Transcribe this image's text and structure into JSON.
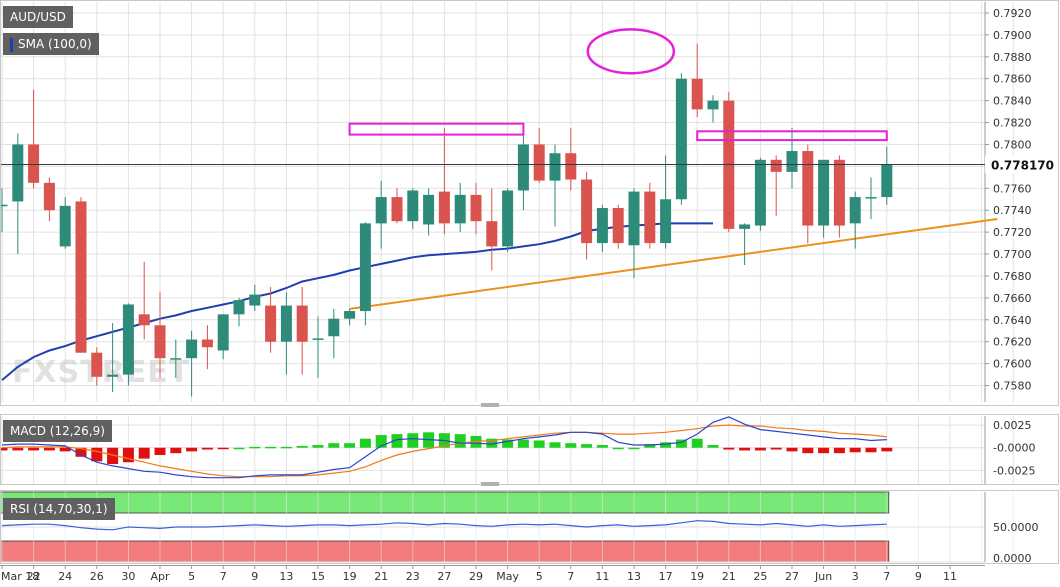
{
  "colors": {
    "up": "#2e8b7a",
    "down": "#d9534f",
    "sma": "#1f3fb0",
    "trendline": "#f0901a",
    "highlight": "#e620d8",
    "macd_line": "#2a44d0",
    "signal_line": "#f07a1a",
    "hist_up": "#20d020",
    "hist_down": "#e01010",
    "rsi_line": "#3a60d8",
    "overbought_zone": "#78e878",
    "oversold_zone": "#f47c7c",
    "grid": "#e2e2e2",
    "label_bg": "#606060"
  },
  "legend": {
    "symbol": "AUD/USD",
    "sma": "SMA (100,0)",
    "macd": "MACD (12,26,9)",
    "rsi": "RSI (14,70,30,1)"
  },
  "watermark": "FXSTREET",
  "price_label": "0.778170",
  "chart_data": [
    {
      "type": "candlestick",
      "title": "AUD/USD",
      "ylim": [
        0.7565,
        0.793
      ],
      "y_ticks": [
        "0.7580",
        "0.7600",
        "0.7620",
        "0.7640",
        "0.7660",
        "0.7680",
        "0.7700",
        "0.7720",
        "0.7740",
        "0.7760",
        "0.7780",
        "0.7800",
        "0.7820",
        "0.7840",
        "0.7860",
        "0.7880",
        "0.7900",
        "0.7920"
      ],
      "x_ticks": [
        "Mar 18",
        "22",
        "24",
        "26",
        "30",
        "Apr",
        "5",
        "7",
        "9",
        "13",
        "15",
        "19",
        "21",
        "23",
        "27",
        "29",
        "May",
        "5",
        "7",
        "11",
        "13",
        "17",
        "19",
        "21",
        "25",
        "27",
        "Jun",
        "3",
        "7",
        "9",
        "11"
      ],
      "current_price": 0.77817,
      "candles": [
        {
          "o": 0.7745,
          "h": 0.776,
          "l": 0.772,
          "c": 0.7745
        },
        {
          "o": 0.7748,
          "h": 0.781,
          "l": 0.77,
          "c": 0.78
        },
        {
          "o": 0.78,
          "h": 0.785,
          "l": 0.776,
          "c": 0.7765
        },
        {
          "o": 0.7765,
          "h": 0.777,
          "l": 0.773,
          "c": 0.774
        },
        {
          "o": 0.7707,
          "h": 0.7752,
          "l": 0.7705,
          "c": 0.7744
        },
        {
          "o": 0.7748,
          "h": 0.7752,
          "l": 0.761,
          "c": 0.761
        },
        {
          "o": 0.761,
          "h": 0.7615,
          "l": 0.758,
          "c": 0.7588
        },
        {
          "o": 0.7588,
          "h": 0.7637,
          "l": 0.7574,
          "c": 0.759
        },
        {
          "o": 0.759,
          "h": 0.7655,
          "l": 0.758,
          "c": 0.7654
        },
        {
          "o": 0.7645,
          "h": 0.7693,
          "l": 0.7622,
          "c": 0.7635
        },
        {
          "o": 0.7635,
          "h": 0.7665,
          "l": 0.7587,
          "c": 0.7605
        },
        {
          "o": 0.7605,
          "h": 0.7622,
          "l": 0.7587,
          "c": 0.7605
        },
        {
          "o": 0.7605,
          "h": 0.763,
          "l": 0.757,
          "c": 0.7622
        },
        {
          "o": 0.7622,
          "h": 0.7635,
          "l": 0.7595,
          "c": 0.7615
        },
        {
          "o": 0.7612,
          "h": 0.7645,
          "l": 0.7604,
          "c": 0.7645
        },
        {
          "o": 0.7645,
          "h": 0.766,
          "l": 0.7634,
          "c": 0.7658
        },
        {
          "o": 0.7653,
          "h": 0.7672,
          "l": 0.7648,
          "c": 0.7663
        },
        {
          "o": 0.7653,
          "h": 0.767,
          "l": 0.761,
          "c": 0.762
        },
        {
          "o": 0.762,
          "h": 0.7665,
          "l": 0.759,
          "c": 0.7653
        },
        {
          "o": 0.7653,
          "h": 0.767,
          "l": 0.759,
          "c": 0.762
        },
        {
          "o": 0.7623,
          "h": 0.7643,
          "l": 0.7587,
          "c": 0.7623
        },
        {
          "o": 0.7625,
          "h": 0.765,
          "l": 0.7605,
          "c": 0.7641
        },
        {
          "o": 0.7641,
          "h": 0.765,
          "l": 0.7635,
          "c": 0.7648
        },
        {
          "o": 0.7648,
          "h": 0.7729,
          "l": 0.7635,
          "c": 0.7728
        },
        {
          "o": 0.7728,
          "h": 0.7767,
          "l": 0.7705,
          "c": 0.7752
        },
        {
          "o": 0.7752,
          "h": 0.776,
          "l": 0.7728,
          "c": 0.773
        },
        {
          "o": 0.773,
          "h": 0.776,
          "l": 0.7723,
          "c": 0.7758
        },
        {
          "o": 0.7727,
          "h": 0.776,
          "l": 0.7717,
          "c": 0.7754
        },
        {
          "o": 0.7757,
          "h": 0.7815,
          "l": 0.7718,
          "c": 0.7728
        },
        {
          "o": 0.7728,
          "h": 0.7765,
          "l": 0.772,
          "c": 0.7754
        },
        {
          "o": 0.7754,
          "h": 0.7765,
          "l": 0.7718,
          "c": 0.773
        },
        {
          "o": 0.773,
          "h": 0.776,
          "l": 0.7685,
          "c": 0.7707
        },
        {
          "o": 0.7707,
          "h": 0.776,
          "l": 0.7702,
          "c": 0.7758
        },
        {
          "o": 0.7758,
          "h": 0.7815,
          "l": 0.774,
          "c": 0.78
        },
        {
          "o": 0.78,
          "h": 0.7815,
          "l": 0.7765,
          "c": 0.7767
        },
        {
          "o": 0.7767,
          "h": 0.78,
          "l": 0.7725,
          "c": 0.7792
        },
        {
          "o": 0.7792,
          "h": 0.7815,
          "l": 0.7758,
          "c": 0.7768
        },
        {
          "o": 0.7768,
          "h": 0.7775,
          "l": 0.7695,
          "c": 0.771
        },
        {
          "o": 0.771,
          "h": 0.7745,
          "l": 0.7702,
          "c": 0.7742
        },
        {
          "o": 0.7742,
          "h": 0.7745,
          "l": 0.7705,
          "c": 0.771
        },
        {
          "o": 0.7708,
          "h": 0.776,
          "l": 0.7678,
          "c": 0.7757
        },
        {
          "o": 0.7757,
          "h": 0.7765,
          "l": 0.7705,
          "c": 0.771
        },
        {
          "o": 0.771,
          "h": 0.779,
          "l": 0.7705,
          "c": 0.775
        },
        {
          "o": 0.775,
          "h": 0.7865,
          "l": 0.7745,
          "c": 0.786
        },
        {
          "o": 0.786,
          "h": 0.7892,
          "l": 0.7825,
          "c": 0.7832
        },
        {
          "o": 0.7832,
          "h": 0.7845,
          "l": 0.782,
          "c": 0.784
        },
        {
          "o": 0.784,
          "h": 0.7848,
          "l": 0.772,
          "c": 0.7723
        },
        {
          "o": 0.7723,
          "h": 0.7728,
          "l": 0.769,
          "c": 0.7727
        },
        {
          "o": 0.7726,
          "h": 0.7788,
          "l": 0.7721,
          "c": 0.7786
        },
        {
          "o": 0.7786,
          "h": 0.779,
          "l": 0.7735,
          "c": 0.7775
        },
        {
          "o": 0.7775,
          "h": 0.7815,
          "l": 0.776,
          "c": 0.7794
        },
        {
          "o": 0.7794,
          "h": 0.78,
          "l": 0.771,
          "c": 0.7726
        },
        {
          "o": 0.7726,
          "h": 0.7785,
          "l": 0.7715,
          "c": 0.7786
        },
        {
          "o": 0.7786,
          "h": 0.779,
          "l": 0.7715,
          "c": 0.7726
        },
        {
          "o": 0.7728,
          "h": 0.7757,
          "l": 0.7705,
          "c": 0.7752
        },
        {
          "o": 0.7752,
          "h": 0.777,
          "l": 0.7732,
          "c": 0.7752
        },
        {
          "o": 0.7752,
          "h": 0.7798,
          "l": 0.7745,
          "c": 0.7782
        }
      ],
      "sma_100": [
        0.7585,
        0.7597,
        0.7606,
        0.7612,
        0.7616,
        0.7621,
        0.7625,
        0.7629,
        0.7633,
        0.7637,
        0.7641,
        0.7644,
        0.7648,
        0.7651,
        0.7654,
        0.7657,
        0.7661,
        0.7664,
        0.7669,
        0.7675,
        0.7678,
        0.7681,
        0.7685,
        0.7688,
        0.7691,
        0.7694,
        0.7697,
        0.7699,
        0.77,
        0.7701,
        0.7702,
        0.7704,
        0.7705,
        0.7707,
        0.7709,
        0.7712,
        0.7716,
        0.7721,
        0.7723,
        0.7725,
        0.7726,
        0.7727,
        0.7728,
        0.7728,
        0.7728,
        0.7728
      ],
      "trendline": {
        "from_bar": 22,
        "from_price": 0.765,
        "to_bar": 63,
        "to_price": 0.7732
      },
      "highlights": [
        {
          "shape": "box",
          "bar_from": 22,
          "bar_to": 33,
          "price_low": 0.7809,
          "price_high": 0.7819
        },
        {
          "shape": "box",
          "bar_from": 44,
          "bar_to": 56,
          "price_low": 0.7804,
          "price_high": 0.7812
        },
        {
          "shape": "ellipse",
          "bar_center": 39.8,
          "price_low": 0.7865,
          "price_high": 0.7905
        }
      ]
    },
    {
      "type": "macd",
      "title": "MACD (12,26,9)",
      "ylim": [
        -0.004,
        0.0035
      ],
      "y_ticks": [
        "0.0025",
        "-0.0000",
        "-0.0025"
      ],
      "histogram": [
        -0.0003,
        -0.0003,
        -0.0003,
        -0.0003,
        -0.0004,
        -0.001,
        -0.0015,
        -0.0018,
        -0.0016,
        -0.0012,
        -0.0008,
        -0.0006,
        -0.0004,
        -0.0002,
        -0.0001,
        0.0,
        0.0001,
        0.0001,
        0.0001,
        0.0002,
        0.0003,
        0.0005,
        0.0005,
        0.001,
        0.0014,
        0.0015,
        0.0016,
        0.0017,
        0.0016,
        0.0015,
        0.0013,
        0.001,
        0.0009,
        0.0009,
        0.0008,
        0.0006,
        0.0005,
        0.0004,
        0.0003,
        0.0,
        0.0,
        0.0004,
        0.0006,
        0.0009,
        0.001,
        0.0003,
        -0.0002,
        -0.0003,
        -0.0003,
        -0.0002,
        -0.0004,
        -0.0006,
        -0.0006,
        -0.0006,
        -0.0005,
        -0.0005,
        -0.0004
      ],
      "macd_line": [
        0.0003,
        0.0004,
        0.0004,
        0.0003,
        0.0002,
        -0.0008,
        -0.0016,
        -0.002,
        -0.0023,
        -0.0026,
        -0.0027,
        -0.003,
        -0.0032,
        -0.0033,
        -0.0033,
        -0.0033,
        -0.0031,
        -0.003,
        -0.003,
        -0.003,
        -0.0027,
        -0.0024,
        -0.0022,
        -0.001,
        0.0002,
        0.0009,
        0.001,
        0.0009,
        0.0008,
        0.0005,
        0.0005,
        0.0004,
        0.0007,
        0.001,
        0.0012,
        0.0014,
        0.0017,
        0.0017,
        0.0015,
        0.0006,
        0.0003,
        0.0003,
        0.0004,
        0.0006,
        0.0015,
        0.0028,
        0.0034,
        0.0026,
        0.002,
        0.0018,
        0.0016,
        0.0014,
        0.0012,
        0.001,
        0.001,
        0.0008,
        0.0009
      ],
      "signal_line": [
        0.0,
        0.0001,
        0.0001,
        0.0001,
        0.0001,
        -0.0001,
        -0.0004,
        -0.0008,
        -0.0012,
        -0.0016,
        -0.002,
        -0.0023,
        -0.0026,
        -0.0029,
        -0.0031,
        -0.0032,
        -0.0032,
        -0.0032,
        -0.0031,
        -0.0031,
        -0.003,
        -0.0028,
        -0.0026,
        -0.0021,
        -0.0014,
        -0.0008,
        -0.0004,
        -0.0001,
        0.0002,
        0.0005,
        0.0007,
        0.0008,
        0.001,
        0.0012,
        0.0014,
        0.0016,
        0.0017,
        0.0017,
        0.0016,
        0.0015,
        0.0015,
        0.0016,
        0.0017,
        0.0019,
        0.0021,
        0.0024,
        0.0025,
        0.0024,
        0.0024,
        0.0022,
        0.0021,
        0.0019,
        0.0018,
        0.0016,
        0.0015,
        0.0014,
        0.0012
      ]
    },
    {
      "type": "rsi",
      "title": "RSI (14,70,30,1)",
      "ylim": [
        0,
        100
      ],
      "y_ticks": [
        "50.0000",
        "0.0000"
      ],
      "overbought": 70,
      "oversold": 30,
      "values": [
        52,
        53,
        54,
        54,
        52,
        49,
        47,
        46,
        50,
        49,
        48,
        50,
        50,
        50,
        51,
        52,
        53,
        52,
        51,
        52,
        53,
        53,
        52,
        53,
        54,
        56,
        55,
        53,
        55,
        54,
        52,
        51,
        53,
        54,
        53,
        54,
        52,
        50,
        52,
        53,
        51,
        52,
        53,
        56,
        59,
        58,
        55,
        54,
        53,
        55,
        53,
        51,
        53,
        51,
        52,
        53,
        54
      ]
    }
  ]
}
